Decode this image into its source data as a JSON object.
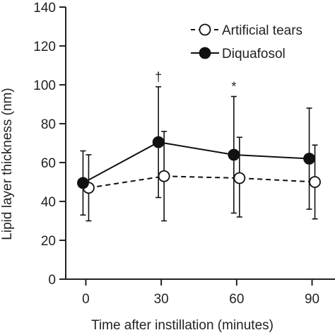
{
  "chart_data": {
    "type": "line",
    "title": "",
    "xlabel": "Time after instillation (minutes)",
    "ylabel": "Lipid layer thickness (nm)",
    "x": [
      0,
      30,
      60,
      90
    ],
    "xticks": [
      "0",
      "30",
      "60",
      "90"
    ],
    "yticks": [
      "0",
      "20",
      "40",
      "60",
      "80",
      "100",
      "120",
      "140"
    ],
    "xlim": [
      -8,
      98
    ],
    "ylim": [
      0,
      140
    ],
    "legend_position": "top-right",
    "series": [
      {
        "name": "Artificial tears",
        "marker": "open-circle",
        "line_style": "dashed",
        "values": [
          47,
          53,
          52,
          50
        ],
        "error_upper": [
          64,
          76,
          73,
          69
        ],
        "error_lower": [
          30,
          30,
          32,
          31
        ]
      },
      {
        "name": "Diquafosol",
        "marker": "filled-circle",
        "line_style": "solid",
        "values": [
          49.5,
          70.5,
          64,
          62
        ],
        "error_upper": [
          66,
          99,
          94,
          88
        ],
        "error_lower": [
          33,
          42,
          34,
          36
        ]
      }
    ],
    "annotations": [
      {
        "text": "†",
        "x": 30,
        "series": "Diquafosol"
      },
      {
        "text": "*",
        "x": 60,
        "series": "Diquafosol"
      }
    ],
    "colors": {
      "axis": "#222222",
      "series": "#111111",
      "open_fill": "#ffffff"
    }
  }
}
